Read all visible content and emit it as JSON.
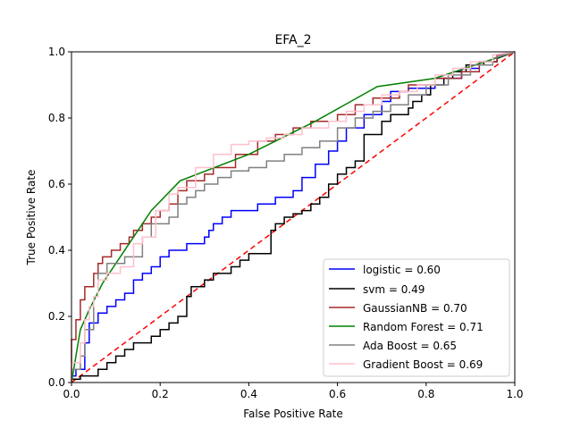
{
  "chart_data": {
    "type": "line",
    "title": "EFA_2",
    "xlabel": "False Positive Rate",
    "ylabel": "True Positive Rate",
    "xlim": [
      0,
      1
    ],
    "ylim": [
      0,
      1
    ],
    "xticks": [
      "0.0",
      "0.2",
      "0.4",
      "0.6",
      "0.8",
      "1.0"
    ],
    "yticks": [
      "0.0",
      "0.2",
      "0.4",
      "0.6",
      "0.8",
      "1.0"
    ],
    "grid": false,
    "legend_position": "lower-right",
    "diagonal": {
      "color": "#ff0000",
      "style": "dashed",
      "x": [
        0,
        1
      ],
      "y": [
        0,
        1
      ]
    },
    "series": [
      {
        "name": "logistic = 0.60",
        "color": "#0000ff",
        "x": [
          0,
          0,
          0.01,
          0.01,
          0.03,
          0.03,
          0.04,
          0.04,
          0.06,
          0.06,
          0.08,
          0.08,
          0.1,
          0.1,
          0.12,
          0.12,
          0.14,
          0.14,
          0.16,
          0.16,
          0.18,
          0.18,
          0.2,
          0.2,
          0.22,
          0.22,
          0.26,
          0.26,
          0.3,
          0.3,
          0.31,
          0.31,
          0.32,
          0.32,
          0.34,
          0.34,
          0.36,
          0.36,
          0.42,
          0.42,
          0.46,
          0.46,
          0.5,
          0.5,
          0.52,
          0.52,
          0.55,
          0.55,
          0.58,
          0.58,
          0.6,
          0.6,
          0.62,
          0.62,
          0.66,
          0.66,
          0.7,
          0.7,
          0.72,
          0.72,
          0.76,
          0.76,
          0.82,
          0.82,
          0.88,
          0.88,
          0.92,
          0.92,
          0.96,
          0.96,
          1.0
        ],
        "y": [
          0,
          0.02,
          0.02,
          0.04,
          0.04,
          0.12,
          0.12,
          0.18,
          0.18,
          0.21,
          0.21,
          0.23,
          0.23,
          0.25,
          0.25,
          0.27,
          0.27,
          0.31,
          0.31,
          0.33,
          0.33,
          0.35,
          0.35,
          0.38,
          0.38,
          0.4,
          0.4,
          0.42,
          0.42,
          0.44,
          0.44,
          0.46,
          0.46,
          0.48,
          0.48,
          0.5,
          0.5,
          0.52,
          0.52,
          0.54,
          0.54,
          0.56,
          0.56,
          0.58,
          0.58,
          0.62,
          0.62,
          0.66,
          0.66,
          0.7,
          0.7,
          0.73,
          0.73,
          0.77,
          0.77,
          0.81,
          0.81,
          0.85,
          0.85,
          0.88,
          0.88,
          0.89,
          0.89,
          0.92,
          0.92,
          0.95,
          0.95,
          0.97,
          0.97,
          0.99,
          1.0
        ]
      },
      {
        "name": "svm = 0.49",
        "color": "#000000",
        "x": [
          0,
          0,
          0.02,
          0.02,
          0.06,
          0.06,
          0.08,
          0.08,
          0.1,
          0.1,
          0.12,
          0.12,
          0.14,
          0.14,
          0.18,
          0.18,
          0.2,
          0.2,
          0.22,
          0.22,
          0.24,
          0.24,
          0.26,
          0.26,
          0.27,
          0.27,
          0.3,
          0.3,
          0.32,
          0.32,
          0.36,
          0.36,
          0.38,
          0.38,
          0.4,
          0.4,
          0.45,
          0.45,
          0.46,
          0.46,
          0.48,
          0.48,
          0.5,
          0.5,
          0.52,
          0.52,
          0.54,
          0.54,
          0.56,
          0.56,
          0.58,
          0.58,
          0.6,
          0.6,
          0.62,
          0.62,
          0.64,
          0.64,
          0.66,
          0.66,
          0.7,
          0.7,
          0.72,
          0.72,
          0.76,
          0.76,
          0.77,
          0.77,
          0.79,
          0.79,
          0.81,
          0.81,
          0.84,
          0.84,
          0.86,
          0.86,
          0.89,
          0.89,
          0.93,
          0.93,
          0.96,
          0.96,
          1.0
        ],
        "y": [
          0,
          0.01,
          0.01,
          0.02,
          0.02,
          0.04,
          0.04,
          0.06,
          0.06,
          0.08,
          0.08,
          0.1,
          0.1,
          0.12,
          0.12,
          0.14,
          0.14,
          0.16,
          0.16,
          0.18,
          0.18,
          0.2,
          0.2,
          0.26,
          0.26,
          0.29,
          0.29,
          0.31,
          0.31,
          0.33,
          0.33,
          0.35,
          0.35,
          0.37,
          0.37,
          0.39,
          0.39,
          0.46,
          0.46,
          0.48,
          0.48,
          0.5,
          0.5,
          0.51,
          0.51,
          0.52,
          0.52,
          0.54,
          0.54,
          0.56,
          0.56,
          0.6,
          0.6,
          0.63,
          0.63,
          0.65,
          0.65,
          0.67,
          0.67,
          0.75,
          0.75,
          0.79,
          0.79,
          0.81,
          0.81,
          0.83,
          0.83,
          0.85,
          0.85,
          0.87,
          0.87,
          0.9,
          0.9,
          0.92,
          0.92,
          0.94,
          0.94,
          0.96,
          0.96,
          0.97,
          0.97,
          0.98,
          1.0
        ]
      },
      {
        "name": "GaussianNB = 0.70",
        "color": "#a52a2a",
        "x": [
          0,
          0,
          0.01,
          0.01,
          0.02,
          0.02,
          0.03,
          0.03,
          0.05,
          0.05,
          0.06,
          0.06,
          0.07,
          0.07,
          0.09,
          0.09,
          0.11,
          0.11,
          0.13,
          0.13,
          0.14,
          0.14,
          0.16,
          0.16,
          0.18,
          0.18,
          0.2,
          0.2,
          0.22,
          0.22,
          0.24,
          0.24,
          0.26,
          0.26,
          0.3,
          0.3,
          0.32,
          0.32,
          0.37,
          0.37,
          0.42,
          0.42,
          0.46,
          0.46,
          0.5,
          0.5,
          0.54,
          0.54,
          0.6,
          0.6,
          0.64,
          0.64,
          0.68,
          0.68,
          0.74,
          0.74,
          0.76,
          0.76,
          0.82,
          0.82,
          0.88,
          0.88,
          0.92,
          0.92,
          0.96,
          0.96,
          1.0
        ],
        "y": [
          0,
          0.13,
          0.13,
          0.19,
          0.19,
          0.25,
          0.25,
          0.29,
          0.29,
          0.33,
          0.33,
          0.36,
          0.36,
          0.38,
          0.38,
          0.4,
          0.4,
          0.42,
          0.42,
          0.44,
          0.44,
          0.46,
          0.46,
          0.48,
          0.48,
          0.5,
          0.5,
          0.52,
          0.52,
          0.54,
          0.54,
          0.58,
          0.58,
          0.61,
          0.61,
          0.63,
          0.63,
          0.65,
          0.65,
          0.69,
          0.69,
          0.73,
          0.73,
          0.75,
          0.75,
          0.77,
          0.77,
          0.79,
          0.79,
          0.81,
          0.81,
          0.84,
          0.84,
          0.86,
          0.86,
          0.88,
          0.88,
          0.9,
          0.9,
          0.92,
          0.92,
          0.94,
          0.94,
          0.97,
          0.97,
          0.99,
          1.0
        ]
      },
      {
        "name": "Random Forest = 0.71",
        "color": "#008000",
        "x": [
          0,
          0.01,
          0.02,
          0.04,
          0.07,
          0.1,
          0.14,
          0.18,
          0.245,
          0.4,
          0.55,
          0.69,
          0.82,
          1.0
        ],
        "y": [
          0,
          0.08,
          0.16,
          0.22,
          0.3,
          0.36,
          0.44,
          0.52,
          0.61,
          0.69,
          0.79,
          0.895,
          0.92,
          1.0
        ]
      },
      {
        "name": "Ada Boost = 0.65",
        "color": "#808080",
        "x": [
          0,
          0,
          0.02,
          0.02,
          0.03,
          0.03,
          0.05,
          0.05,
          0.06,
          0.06,
          0.08,
          0.08,
          0.12,
          0.12,
          0.16,
          0.16,
          0.18,
          0.18,
          0.22,
          0.22,
          0.24,
          0.24,
          0.26,
          0.26,
          0.28,
          0.28,
          0.3,
          0.3,
          0.33,
          0.33,
          0.36,
          0.36,
          0.4,
          0.4,
          0.44,
          0.44,
          0.48,
          0.48,
          0.52,
          0.52,
          0.56,
          0.56,
          0.6,
          0.6,
          0.64,
          0.64,
          0.68,
          0.68,
          0.72,
          0.72,
          0.76,
          0.76,
          0.8,
          0.8,
          0.85,
          0.85,
          0.9,
          0.9,
          0.95,
          0.95,
          1.0
        ],
        "y": [
          0,
          0.04,
          0.04,
          0.08,
          0.08,
          0.16,
          0.16,
          0.26,
          0.26,
          0.33,
          0.33,
          0.36,
          0.36,
          0.38,
          0.38,
          0.44,
          0.44,
          0.48,
          0.48,
          0.5,
          0.5,
          0.54,
          0.54,
          0.56,
          0.56,
          0.58,
          0.58,
          0.6,
          0.6,
          0.62,
          0.62,
          0.64,
          0.64,
          0.65,
          0.65,
          0.67,
          0.67,
          0.69,
          0.69,
          0.71,
          0.71,
          0.73,
          0.73,
          0.77,
          0.77,
          0.8,
          0.8,
          0.82,
          0.82,
          0.84,
          0.84,
          0.87,
          0.87,
          0.9,
          0.9,
          0.93,
          0.93,
          0.96,
          0.96,
          0.98,
          1.0
        ]
      },
      {
        "name": "Gradient Boost = 0.69",
        "color": "#ffc0cb",
        "x": [
          0,
          0,
          0.02,
          0.02,
          0.03,
          0.03,
          0.04,
          0.04,
          0.05,
          0.05,
          0.06,
          0.06,
          0.08,
          0.08,
          0.11,
          0.11,
          0.14,
          0.14,
          0.16,
          0.16,
          0.19,
          0.19,
          0.22,
          0.22,
          0.24,
          0.24,
          0.28,
          0.28,
          0.32,
          0.32,
          0.36,
          0.36,
          0.4,
          0.4,
          0.44,
          0.44,
          0.48,
          0.48,
          0.52,
          0.52,
          0.58,
          0.58,
          0.62,
          0.62,
          0.66,
          0.66,
          0.7,
          0.7,
          0.74,
          0.74,
          0.78,
          0.78,
          0.82,
          0.82,
          0.86,
          0.86,
          0.9,
          0.9,
          0.95,
          0.95,
          1.0
        ],
        "y": [
          0,
          0.06,
          0.06,
          0.12,
          0.12,
          0.19,
          0.19,
          0.23,
          0.23,
          0.26,
          0.26,
          0.31,
          0.31,
          0.33,
          0.33,
          0.35,
          0.35,
          0.42,
          0.42,
          0.44,
          0.44,
          0.52,
          0.52,
          0.57,
          0.57,
          0.59,
          0.59,
          0.65,
          0.65,
          0.69,
          0.69,
          0.72,
          0.72,
          0.73,
          0.73,
          0.74,
          0.74,
          0.75,
          0.75,
          0.77,
          0.77,
          0.79,
          0.79,
          0.82,
          0.82,
          0.84,
          0.84,
          0.87,
          0.87,
          0.88,
          0.88,
          0.9,
          0.9,
          0.93,
          0.93,
          0.95,
          0.95,
          0.97,
          0.97,
          0.99,
          1.0
        ]
      }
    ]
  }
}
